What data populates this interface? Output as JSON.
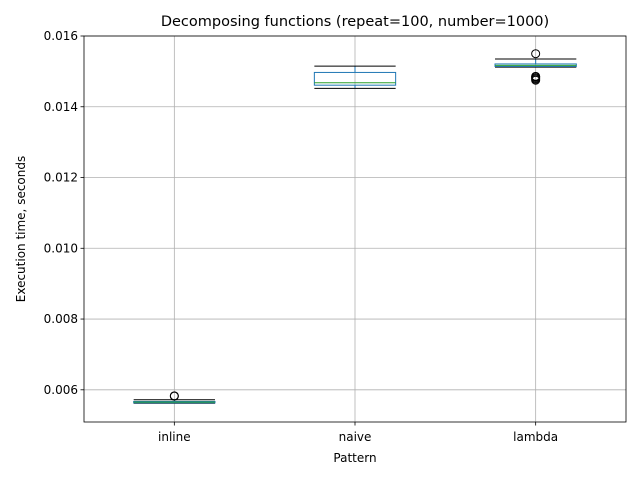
{
  "chart_data": {
    "type": "box",
    "title": "Decomposing functions (repeat=100, number=1000)",
    "xlabel": "Pattern",
    "ylabel": "Execution time, seconds",
    "ylim": [
      0.00509,
      0.016
    ],
    "yticks": [
      "0.006",
      "0.008",
      "0.010",
      "0.012",
      "0.014",
      "0.016"
    ],
    "grid": true,
    "categories": [
      "inline",
      "naive",
      "lambda"
    ],
    "boxes": [
      {
        "name": "inline",
        "whisker_low": 0.00562,
        "q1": 0.00563,
        "median": 0.00565,
        "q3": 0.00567,
        "whisker_high": 0.00572,
        "outliers": [
          0.00582,
          0.00583
        ]
      },
      {
        "name": "naive",
        "whisker_low": 0.01452,
        "q1": 0.01461,
        "median": 0.01468,
        "q3": 0.01497,
        "whisker_high": 0.01515,
        "outliers": []
      },
      {
        "name": "lambda",
        "whisker_low": 0.01512,
        "q1": 0.01514,
        "median": 0.01517,
        "q3": 0.01521,
        "whisker_high": 0.01535,
        "outliers": [
          0.01475,
          0.01478,
          0.01481,
          0.01484,
          0.01486,
          0.0155
        ]
      }
    ],
    "colors": {
      "box": "#1f77b4",
      "median": "#2ca02c",
      "whisker": "#000000",
      "grid": "#b0b0b0"
    }
  }
}
